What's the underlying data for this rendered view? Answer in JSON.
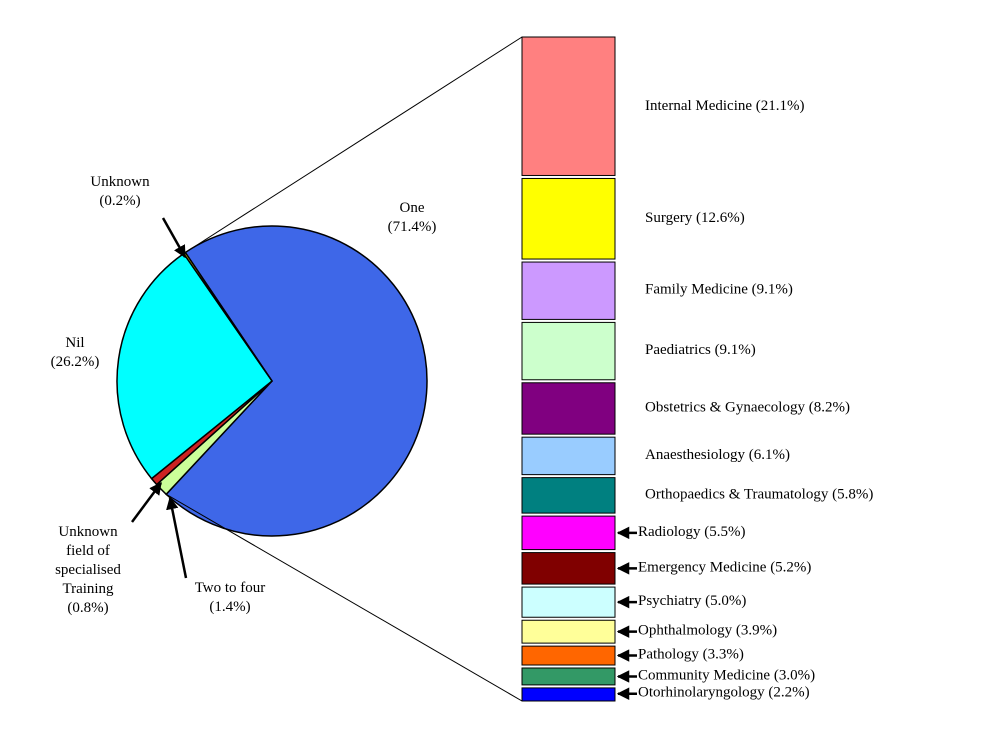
{
  "chart_data": {
    "type": "bar-of-pie",
    "pie": {
      "categories": [
        "One",
        "Two to four",
        "Unknown field of specialised Training",
        "Nil",
        "Unknown"
      ],
      "values": [
        71.4,
        1.4,
        0.8,
        26.2,
        0.2
      ],
      "value_labels": [
        "(71.4%)",
        "(1.4%)",
        "(0.8%)",
        "(26.2%)",
        "(0.2%)"
      ],
      "colors": [
        "#3e67e8",
        "#ccff99",
        "#cc2222",
        "#00ffff",
        "#ffff00"
      ]
    },
    "bar": {
      "categories": [
        "Internal Medicine",
        "Surgery",
        "Family Medicine",
        "Paediatrics",
        "Obstetrics & Gynaecology",
        "Anaesthesiology",
        "Orthopaedics & Traumatology",
        "Radiology",
        "Emergency Medicine",
        "Psychiatry",
        "Ophthalmology",
        "Pathology",
        "Community Medicine",
        "Otorhinolaryngology"
      ],
      "values": [
        21.1,
        12.6,
        9.1,
        9.1,
        8.2,
        6.1,
        5.8,
        5.5,
        5.2,
        5.0,
        3.9,
        3.3,
        3.0,
        2.2
      ],
      "value_labels": [
        "(21.1%)",
        "(12.6%)",
        "(9.1%)",
        "(9.1%)",
        "(8.2%)",
        "(6.1%)",
        "(5.8%)",
        "(5.5%)",
        "(5.2%)",
        "(5.0%)",
        "(3.9%)",
        "(3.3%)",
        "(3.0%)",
        "(2.2%)"
      ],
      "colors": [
        "#ff8080",
        "#ffff00",
        "#cc99ff",
        "#ccffcc",
        "#800080",
        "#99ccff",
        "#008080",
        "#ff00ff",
        "#800000",
        "#ccffff",
        "#ffff99",
        "#ff6600",
        "#339966",
        "#0000ff"
      ]
    }
  }
}
